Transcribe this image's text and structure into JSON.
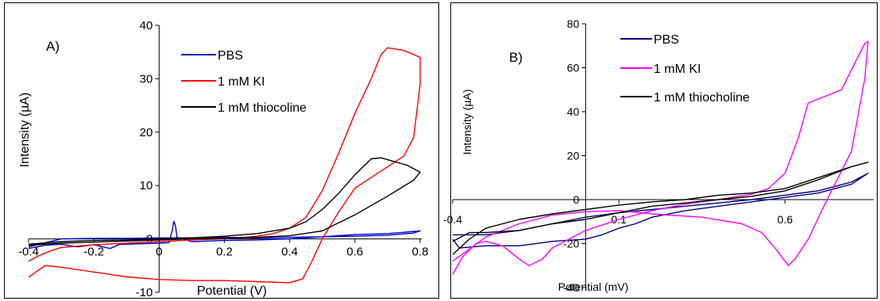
{
  "chart_data": [
    {
      "type": "line",
      "panel_label": "A)",
      "xlabel": "Potential (V)",
      "ylabel": "Intensity (µA)",
      "xlim": [
        -0.4,
        0.8
      ],
      "ylim": [
        -10,
        40
      ],
      "x_ticks": [
        "-0.4",
        "-0.2",
        "0",
        "0.2",
        "0.4",
        "0.6",
        "0.8"
      ],
      "y_ticks": [
        "-10",
        "0",
        "10",
        "20",
        "30",
        "40"
      ],
      "grid": false,
      "legend_position": "top-center",
      "series": [
        {
          "name": "PBS",
          "color": "#0000cc",
          "points": [
            [
              -0.4,
              -1.8
            ],
            [
              -0.35,
              -1.2
            ],
            [
              -0.3,
              -1.0
            ],
            [
              -0.25,
              -1.5
            ],
            [
              -0.2,
              -1.1
            ],
            [
              -0.15,
              -1.8
            ],
            [
              -0.12,
              -1.0
            ],
            [
              -0.1,
              -1.0
            ],
            [
              -0.05,
              -0.9
            ],
            [
              0.0,
              -0.8
            ],
            [
              0.03,
              -0.7
            ],
            [
              0.04,
              1.5
            ],
            [
              0.045,
              3.3
            ],
            [
              0.05,
              2.5
            ],
            [
              0.055,
              0.3
            ],
            [
              0.1,
              -0.5
            ],
            [
              0.2,
              -0.3
            ],
            [
              0.3,
              -0.2
            ],
            [
              0.4,
              0.0
            ],
            [
              0.5,
              0.4
            ],
            [
              0.6,
              0.8
            ],
            [
              0.7,
              1.0
            ],
            [
              0.78,
              1.4
            ],
            [
              0.8,
              1.5
            ],
            [
              0.78,
              1.1
            ],
            [
              0.7,
              0.7
            ],
            [
              0.6,
              0.5
            ],
            [
              0.5,
              0.4
            ],
            [
              0.4,
              0.3
            ],
            [
              0.3,
              0.2
            ],
            [
              0.2,
              0.3
            ],
            [
              0.1,
              0.2
            ],
            [
              0.0,
              0.2
            ],
            [
              -0.1,
              0.1
            ],
            [
              -0.2,
              0.1
            ],
            [
              -0.3,
              0.0
            ],
            [
              -0.4,
              -1.5
            ]
          ]
        },
        {
          "name": "1 mM KI",
          "color": "#ff0000",
          "points": [
            [
              -0.4,
              -4.2
            ],
            [
              -0.37,
              -3.2
            ],
            [
              -0.33,
              -2.2
            ],
            [
              -0.3,
              -1.6
            ],
            [
              -0.2,
              -1.1
            ],
            [
              -0.1,
              -0.8
            ],
            [
              0.0,
              -0.5
            ],
            [
              0.1,
              -0.2
            ],
            [
              0.2,
              0.0
            ],
            [
              0.3,
              0.5
            ],
            [
              0.35,
              1.0
            ],
            [
              0.4,
              2.0
            ],
            [
              0.45,
              4.0
            ],
            [
              0.5,
              9.0
            ],
            [
              0.55,
              16.0
            ],
            [
              0.6,
              23.5
            ],
            [
              0.65,
              30.0
            ],
            [
              0.68,
              34.5
            ],
            [
              0.7,
              35.8
            ],
            [
              0.75,
              35.3
            ],
            [
              0.8,
              34.0
            ],
            [
              0.8,
              29.0
            ],
            [
              0.78,
              19.0
            ],
            [
              0.75,
              15.5
            ],
            [
              0.7,
              13.5
            ],
            [
              0.65,
              11.5
            ],
            [
              0.6,
              9.5
            ],
            [
              0.55,
              5.0
            ],
            [
              0.5,
              0.0
            ],
            [
              0.47,
              -4.0
            ],
            [
              0.44,
              -7.5
            ],
            [
              0.4,
              -8.2
            ],
            [
              0.3,
              -8.0
            ],
            [
              0.2,
              -7.8
            ],
            [
              0.1,
              -7.8
            ],
            [
              0.0,
              -7.6
            ],
            [
              -0.1,
              -7.1
            ],
            [
              -0.2,
              -6.2
            ],
            [
              -0.3,
              -5.3
            ],
            [
              -0.35,
              -5.0
            ],
            [
              -0.4,
              -7.2
            ]
          ]
        },
        {
          "name": "1 mM thiocoline",
          "color": "#000000",
          "points": [
            [
              -0.4,
              -1.0
            ],
            [
              -0.3,
              -0.5
            ],
            [
              -0.2,
              -0.3
            ],
            [
              -0.1,
              -0.2
            ],
            [
              0.0,
              0.0
            ],
            [
              0.1,
              0.2
            ],
            [
              0.2,
              0.5
            ],
            [
              0.3,
              1.0
            ],
            [
              0.4,
              2.0
            ],
            [
              0.45,
              3.2
            ],
            [
              0.5,
              5.5
            ],
            [
              0.55,
              8.5
            ],
            [
              0.6,
              12.0
            ],
            [
              0.65,
              15.0
            ],
            [
              0.68,
              15.2
            ],
            [
              0.72,
              14.5
            ],
            [
              0.76,
              13.8
            ],
            [
              0.8,
              12.5
            ],
            [
              0.78,
              11.0
            ],
            [
              0.7,
              8.0
            ],
            [
              0.6,
              4.5
            ],
            [
              0.5,
              1.5
            ],
            [
              0.4,
              0.6
            ],
            [
              0.3,
              0.3
            ],
            [
              0.2,
              0.1
            ],
            [
              0.1,
              0.0
            ],
            [
              0.0,
              -0.2
            ],
            [
              -0.1,
              -0.4
            ],
            [
              -0.2,
              -0.6
            ],
            [
              -0.3,
              -0.8
            ],
            [
              -0.4,
              -1.2
            ]
          ]
        }
      ]
    },
    {
      "type": "line",
      "panel_label": "B)",
      "xlabel": "Potential (mV)",
      "ylabel": "Intensity (µA)",
      "xlim": [
        -0.4,
        0.85
      ],
      "ylim": [
        -40,
        80
      ],
      "x_ticks": [
        "-0.4",
        "0.1",
        "0.6"
      ],
      "y_ticks": [
        "-40",
        "-20",
        "0",
        "20",
        "40",
        "60",
        "80"
      ],
      "grid": false,
      "legend_position": "top-center",
      "series": [
        {
          "name": "PBS",
          "color": "#000080",
          "points": [
            [
              -0.4,
              -16.0
            ],
            [
              -0.3,
              -16.0
            ],
            [
              -0.2,
              -14.0
            ],
            [
              -0.1,
              -11.0
            ],
            [
              0.0,
              -8.0
            ],
            [
              0.1,
              -6.0
            ],
            [
              0.2,
              -4.5
            ],
            [
              0.3,
              -3.0
            ],
            [
              0.4,
              -1.5
            ],
            [
              0.5,
              0.0
            ],
            [
              0.6,
              2.0
            ],
            [
              0.7,
              4.0
            ],
            [
              0.8,
              8.0
            ],
            [
              0.85,
              12.0
            ],
            [
              0.8,
              7.0
            ],
            [
              0.7,
              3.0
            ],
            [
              0.6,
              1.0
            ],
            [
              0.5,
              -1.0
            ],
            [
              0.4,
              -3.0
            ],
            [
              0.3,
              -5.0
            ],
            [
              0.2,
              -8.0
            ],
            [
              0.15,
              -11.0
            ],
            [
              0.1,
              -13.0
            ],
            [
              0.05,
              -16.0
            ],
            [
              0.0,
              -18.0
            ],
            [
              -0.1,
              -19.0
            ],
            [
              -0.2,
              -21.0
            ],
            [
              -0.3,
              -21.0
            ],
            [
              -0.38,
              -22.0
            ],
            [
              -0.4,
              -18.0
            ]
          ]
        },
        {
          "name": "1 mM KI",
          "color": "#ff00ff",
          "points": [
            [
              -0.4,
              -34.0
            ],
            [
              -0.37,
              -26.0
            ],
            [
              -0.33,
              -20.0
            ],
            [
              -0.3,
              -19.0
            ],
            [
              -0.25,
              -21.0
            ],
            [
              -0.2,
              -27.0
            ],
            [
              -0.17,
              -30.0
            ],
            [
              -0.13,
              -27.0
            ],
            [
              -0.1,
              -22.0
            ],
            [
              0.0,
              -14.0
            ],
            [
              0.1,
              -9.0
            ],
            [
              0.2,
              -5.0
            ],
            [
              0.3,
              -2.0
            ],
            [
              0.4,
              0.0
            ],
            [
              0.5,
              2.5
            ],
            [
              0.55,
              5.0
            ],
            [
              0.6,
              12.0
            ],
            [
              0.64,
              28.0
            ],
            [
              0.67,
              44.0
            ],
            [
              0.72,
              47.0
            ],
            [
              0.77,
              50.0
            ],
            [
              0.82,
              65.0
            ],
            [
              0.84,
              71.0
            ],
            [
              0.85,
              72.0
            ],
            [
              0.84,
              55.0
            ],
            [
              0.8,
              22.0
            ],
            [
              0.76,
              10.0
            ],
            [
              0.72,
              -2.0
            ],
            [
              0.67,
              -18.0
            ],
            [
              0.63,
              -27.0
            ],
            [
              0.61,
              -30.0
            ],
            [
              0.57,
              -22.0
            ],
            [
              0.53,
              -15.0
            ],
            [
              0.47,
              -11.0
            ],
            [
              0.35,
              -8.0
            ],
            [
              0.2,
              -6.5
            ],
            [
              0.1,
              -5.0
            ],
            [
              0.0,
              -5.5
            ],
            [
              -0.1,
              -7.0
            ],
            [
              -0.2,
              -11.0
            ],
            [
              -0.3,
              -17.0
            ],
            [
              -0.4,
              -28.0
            ]
          ]
        },
        {
          "name": "1 mM thiocholine",
          "color": "#000000",
          "points": [
            [
              -0.4,
              -25.0
            ],
            [
              -0.35,
              -18.0
            ],
            [
              -0.3,
              -13.0
            ],
            [
              -0.2,
              -9.0
            ],
            [
              -0.1,
              -6.5
            ],
            [
              0.0,
              -4.5
            ],
            [
              0.1,
              -2.5
            ],
            [
              0.2,
              -1.0
            ],
            [
              0.3,
              0.0
            ],
            [
              0.4,
              2.0
            ],
            [
              0.5,
              3.0
            ],
            [
              0.6,
              5.0
            ],
            [
              0.7,
              10.0
            ],
            [
              0.8,
              15.0
            ],
            [
              0.85,
              17.0
            ],
            [
              0.8,
              15.0
            ],
            [
              0.7,
              9.0
            ],
            [
              0.6,
              4.0
            ],
            [
              0.5,
              1.5
            ],
            [
              0.4,
              0.0
            ],
            [
              0.3,
              -1.5
            ],
            [
              0.2,
              -3.0
            ],
            [
              0.1,
              -6.0
            ],
            [
              0.0,
              -9.0
            ],
            [
              -0.1,
              -11.0
            ],
            [
              -0.2,
              -14.0
            ],
            [
              -0.3,
              -15.0
            ],
            [
              -0.35,
              -15.0
            ],
            [
              -0.4,
              -19.0
            ]
          ]
        }
      ]
    }
  ]
}
